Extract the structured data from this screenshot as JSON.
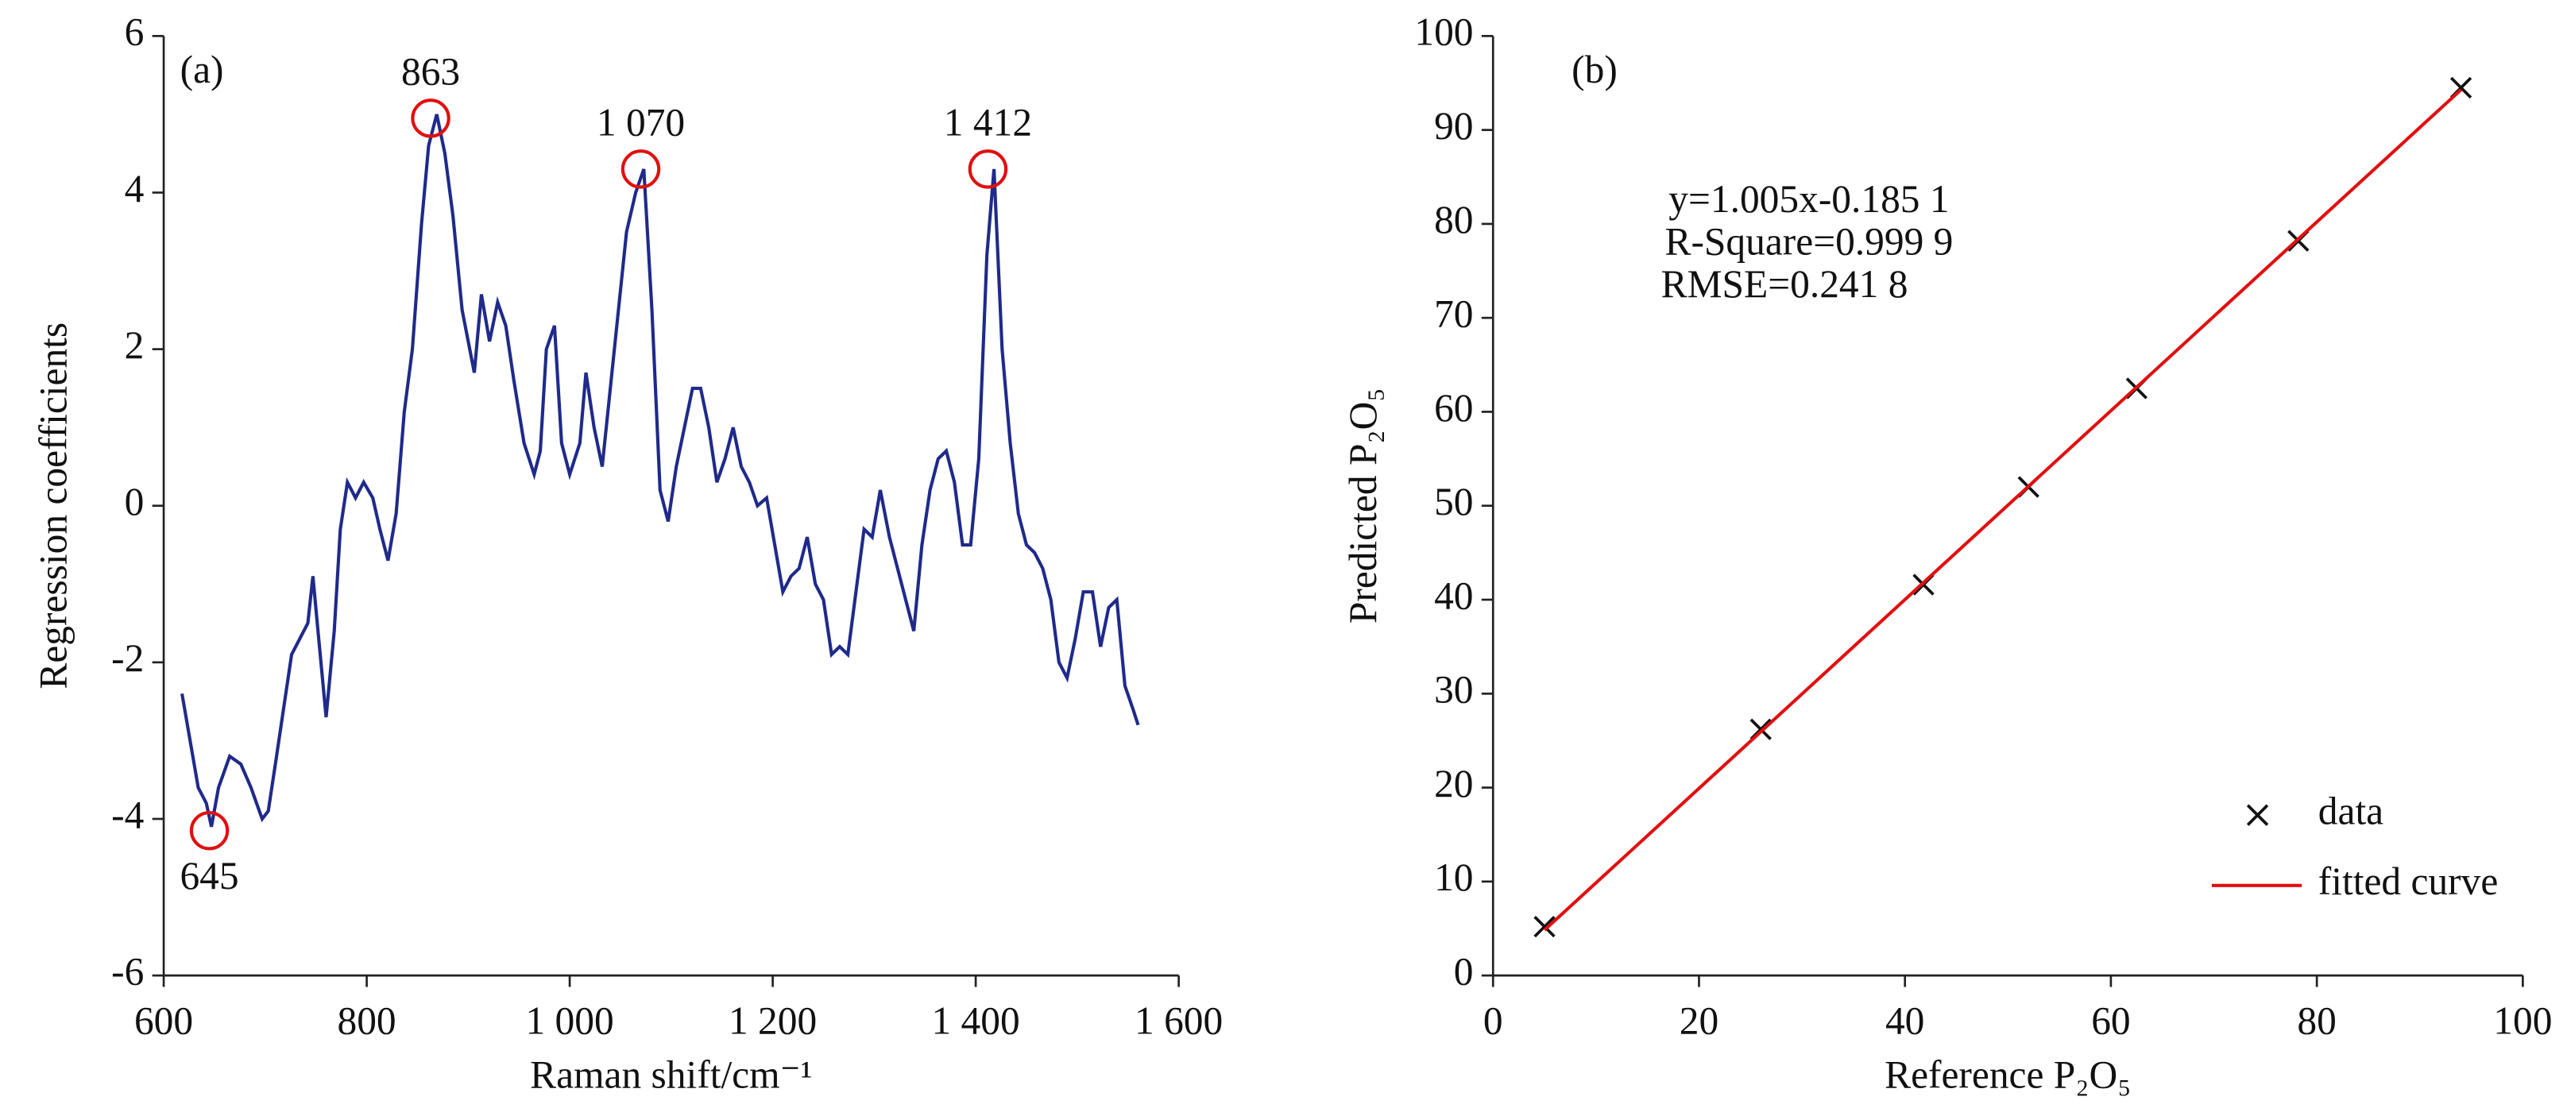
{
  "chart_data": [
    {
      "type": "line",
      "panel_label": "(a)",
      "x_label": "Raman shift/cm⁻¹",
      "y_label": "Regression coefficients",
      "xlim": [
        600,
        1600
      ],
      "xticks": [
        600,
        800,
        {
          "value": 1000,
          "label": "1 000"
        },
        {
          "value": 1200,
          "label": "1 200"
        },
        {
          "value": 1400,
          "label": "1 400"
        },
        {
          "value": 1600,
          "label": "1 600"
        }
      ],
      "ylim": [
        -6,
        6
      ],
      "yticks": [
        -6,
        -4,
        -2,
        0,
        2,
        4,
        6
      ],
      "series": [
        {
          "color": "#1f2a8a",
          "x": [
            618,
            626,
            634,
            642,
            647,
            654,
            665,
            676,
            686,
            697,
            703,
            710,
            718,
            726,
            734,
            742,
            747,
            752,
            760,
            768,
            774,
            781,
            789,
            797,
            806,
            813,
            821,
            829,
            837,
            845,
            854,
            861,
            869,
            877,
            885,
            894,
            906,
            913,
            921,
            929,
            937,
            945,
            955,
            965,
            971,
            977,
            985,
            992,
            1000,
            1010,
            1016,
            1024,
            1032,
            1040,
            1048,
            1056,
            1065,
            1073,
            1081,
            1089,
            1097,
            1105,
            1113,
            1121,
            1129,
            1137,
            1145,
            1153,
            1161,
            1169,
            1177,
            1185,
            1194,
            1202,
            1210,
            1218,
            1226,
            1234,
            1242,
            1250,
            1258,
            1266,
            1274,
            1282,
            1290,
            1298,
            1306,
            1315,
            1323,
            1331,
            1339,
            1347,
            1355,
            1363,
            1371,
            1379,
            1387,
            1395,
            1403,
            1411,
            1418,
            1426,
            1434,
            1442,
            1450,
            1458,
            1466,
            1474,
            1482,
            1490,
            1498,
            1506,
            1515,
            1523,
            1531,
            1539,
            1547,
            1555,
            1560
          ],
          "values": [
            -2.4,
            -3.0,
            -3.6,
            -3.8,
            -4.1,
            -3.6,
            -3.2,
            -3.3,
            -3.6,
            -4.0,
            -3.9,
            -3.3,
            -2.6,
            -1.9,
            -1.7,
            -1.5,
            -0.9,
            -1.6,
            -2.7,
            -1.6,
            -0.3,
            0.3,
            0.1,
            0.3,
            0.1,
            -0.3,
            -0.7,
            -0.1,
            1.2,
            2.0,
            3.6,
            4.6,
            5.0,
            4.5,
            3.7,
            2.5,
            1.7,
            2.7,
            2.1,
            2.6,
            2.3,
            1.6,
            0.8,
            0.4,
            0.7,
            2.0,
            2.3,
            0.8,
            0.4,
            0.8,
            1.7,
            1.0,
            0.5,
            1.5,
            2.5,
            3.5,
            4.0,
            4.3,
            2.5,
            0.2,
            -0.2,
            0.5,
            1.0,
            1.5,
            1.5,
            1.0,
            0.3,
            0.6,
            1.0,
            0.5,
            0.3,
            0.0,
            0.1,
            -0.5,
            -1.1,
            -0.9,
            -0.8,
            -0.4,
            -1.0,
            -1.2,
            -1.9,
            -1.8,
            -1.9,
            -1.1,
            -0.3,
            -0.4,
            0.2,
            -0.4,
            -0.8,
            -1.2,
            -1.6,
            -0.5,
            0.2,
            0.6,
            0.7,
            0.3,
            -0.5,
            -0.5,
            0.6,
            3.2,
            4.3,
            2.0,
            0.8,
            -0.1,
            -0.5,
            -0.6,
            -0.8,
            -1.2,
            -2.0,
            -2.2,
            -1.7,
            -1.1,
            -1.1,
            -1.8,
            -1.3,
            -1.2,
            -2.3,
            -2.6,
            -2.8
          ]
        }
      ],
      "annotations": [
        {
          "text": "863",
          "x": 863,
          "y": 4.95,
          "position": "above"
        },
        {
          "text": "1 070",
          "x": 1070,
          "y": 4.3,
          "position": "above"
        },
        {
          "text": "1 412",
          "x": 1412,
          "y": 4.3,
          "position": "above"
        },
        {
          "text": "645",
          "x": 645,
          "y": -4.15,
          "position": "below"
        }
      ],
      "annotation_color": "#e01010"
    },
    {
      "type": "scatter",
      "panel_label": "(b)",
      "x_label": "Reference P₂O₅",
      "y_label": "Predicted P₂O₅",
      "xlim": [
        0,
        100
      ],
      "xticks": [
        0,
        20,
        40,
        60,
        80,
        100
      ],
      "ylim": [
        0,
        100
      ],
      "yticks": [
        0,
        10,
        20,
        30,
        40,
        50,
        60,
        70,
        80,
        90,
        100
      ],
      "annotations": [
        "y=1.005x-0.185 1",
        "R-Square=0.999 9",
        "RMSE=0.241 8"
      ],
      "legend": "lower right",
      "series": [
        {
          "name": "data",
          "color": "#111111",
          "marker": "x",
          "x": [
            5,
            26,
            41.8,
            52,
            62.5,
            78.2,
            94
          ],
          "values": [
            5.2,
            26.2,
            41.6,
            52,
            62.5,
            78.2,
            94.5
          ]
        },
        {
          "name": "fitted curve",
          "color": "#e01010",
          "x": [
            5,
            94
          ],
          "values": [
            4.84,
            94.28
          ]
        }
      ]
    }
  ]
}
